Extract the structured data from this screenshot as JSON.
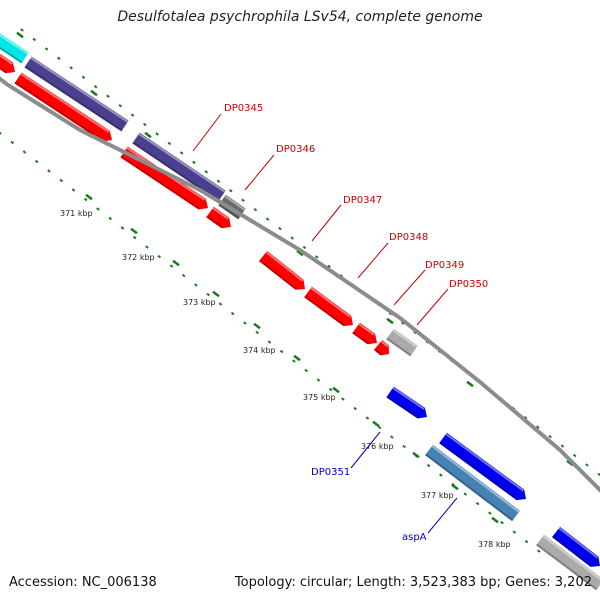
{
  "header": {
    "title": "Desulfotalea psychrophila LSv54, complete genome"
  },
  "footer": {
    "accession": "Accession: NC_006138",
    "summary": "Topology: circular; Length: 3,523,383 bp; Genes: 3,202"
  },
  "colors": {
    "forward_strand": "#ff0000",
    "reverse_strand": "#0000ee",
    "forward_rna": "#4b3f8f",
    "reverse_rna": "#4682b4",
    "other": "#aaaaaa",
    "cyan_feature": "#00e5e5",
    "gray_feature": "#6b6b6b",
    "backbone": "#8c8c8c",
    "tick": "#1a7a1a"
  },
  "scale": {
    "ticks": [
      {
        "label": "371 kbp"
      },
      {
        "label": "372 kbp"
      },
      {
        "label": "373 kbp"
      },
      {
        "label": "374 kbp"
      },
      {
        "label": "375 kbp"
      },
      {
        "label": "376 kbp"
      },
      {
        "label": "377 kbp"
      },
      {
        "label": "378 kbp"
      }
    ]
  },
  "gene_labels": [
    {
      "label": "DP0345",
      "color": "#cc0000"
    },
    {
      "label": "DP0346",
      "color": "#cc0000"
    },
    {
      "label": "DP0347",
      "color": "#cc0000"
    },
    {
      "label": "DP0348",
      "color": "#cc0000"
    },
    {
      "label": "DP0349",
      "color": "#cc0000"
    },
    {
      "label": "DP0350",
      "color": "#cc0000"
    },
    {
      "label": "DP0351",
      "color": "#0000cc"
    },
    {
      "label": "aspA",
      "color": "#0000cc"
    }
  ]
}
